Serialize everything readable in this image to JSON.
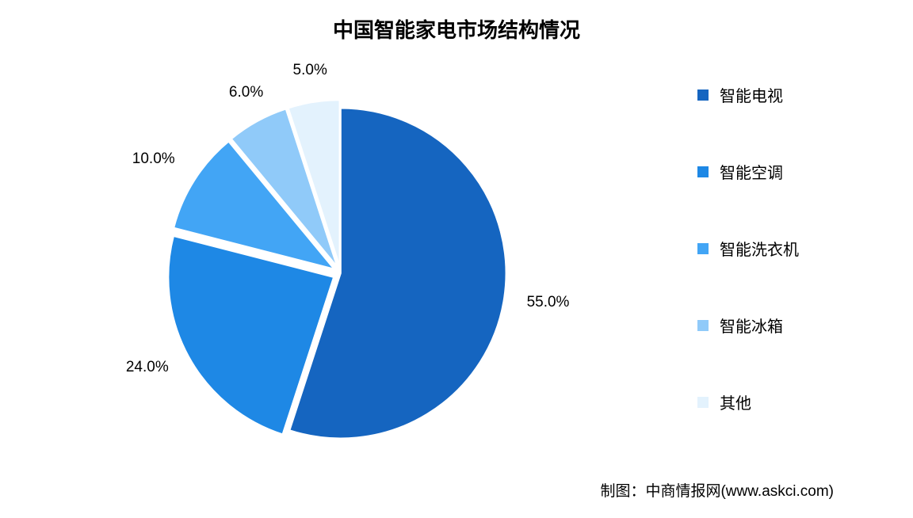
{
  "chart": {
    "type": "pie",
    "title": "中国智能家电市场结构情况",
    "title_fontsize": 26,
    "background_color": "#ffffff",
    "pie_radius": 250,
    "start_angle_deg": -90,
    "explode_pct": 0.05,
    "slice_border_color": "#ffffff",
    "slice_border_width": 2,
    "label_fontsize": 19,
    "label_color": "#000000",
    "slices": [
      {
        "name": "智能电视",
        "value": 55.0,
        "label": "55.0%",
        "color": "#1565c0",
        "exploded": false
      },
      {
        "name": "智能空调",
        "value": 24.0,
        "label": "24.0%",
        "color": "#1e88e5",
        "exploded": true
      },
      {
        "name": "智能洗衣机",
        "value": 10.0,
        "label": "10.0%",
        "color": "#42a5f5",
        "exploded": true
      },
      {
        "name": "智能冰箱",
        "value": 6.0,
        "label": "6.0%",
        "color": "#90caf9",
        "exploded": true
      },
      {
        "name": "其他",
        "value": 5.0,
        "label": "5.0%",
        "color": "#e3f2fd",
        "exploded": true
      }
    ],
    "legend": {
      "position": "right",
      "marker_size": 14,
      "fontsize": 20,
      "item_gap": 68
    },
    "attribution": "制图：中商情报网(www.askci.com)"
  }
}
